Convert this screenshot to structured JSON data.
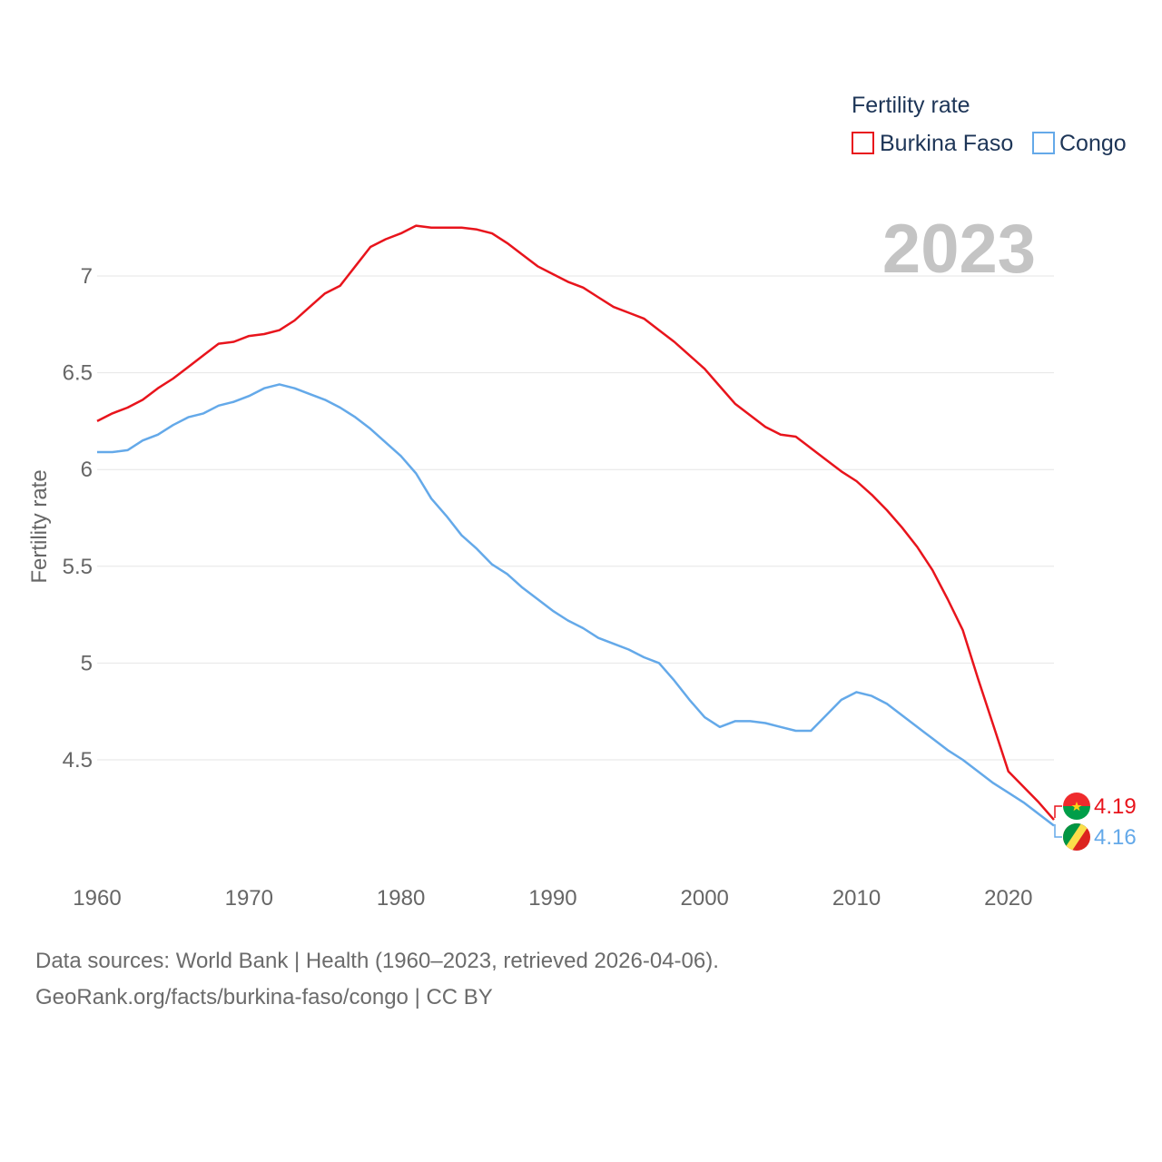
{
  "chart_data": {
    "type": "line",
    "title": "",
    "xlabel": "",
    "ylabel": "Fertility rate",
    "xlim": [
      1960,
      2023
    ],
    "ylim": [
      4.0,
      7.25
    ],
    "x_ticks": [
      1960,
      1970,
      1980,
      1990,
      2000,
      2010,
      2020
    ],
    "y_ticks": [
      4.5,
      5,
      5.5,
      6,
      6.5,
      7
    ],
    "y_tick_labels": [
      "4.5",
      "5",
      "5.5",
      "6",
      "6.5",
      "7"
    ],
    "x_tick_labels": [
      "1960",
      "1970",
      "1980",
      "1990",
      "2000",
      "2010",
      "2020"
    ],
    "year_label": "2023",
    "legend": {
      "title": "Fertility rate",
      "position": "top-right"
    },
    "x": [
      1960,
      1961,
      1962,
      1963,
      1964,
      1965,
      1966,
      1967,
      1968,
      1969,
      1970,
      1971,
      1972,
      1973,
      1974,
      1975,
      1976,
      1977,
      1978,
      1979,
      1980,
      1981,
      1982,
      1983,
      1984,
      1985,
      1986,
      1987,
      1988,
      1989,
      1990,
      1991,
      1992,
      1993,
      1994,
      1995,
      1996,
      1997,
      1998,
      1999,
      2000,
      2001,
      2002,
      2003,
      2004,
      2005,
      2006,
      2007,
      2008,
      2009,
      2010,
      2011,
      2012,
      2013,
      2014,
      2015,
      2016,
      2017,
      2018,
      2019,
      2020,
      2021,
      2022,
      2023
    ],
    "series": [
      {
        "name": "Burkina Faso",
        "color": "#e8141c",
        "end_label": "4.19",
        "flag": "burkina-faso-flag-icon",
        "values": [
          6.25,
          6.29,
          6.32,
          6.36,
          6.42,
          6.47,
          6.53,
          6.59,
          6.65,
          6.66,
          6.69,
          6.7,
          6.72,
          6.77,
          6.84,
          6.91,
          6.95,
          7.05,
          7.15,
          7.19,
          7.22,
          7.26,
          7.25,
          7.25,
          7.25,
          7.24,
          7.22,
          7.17,
          7.11,
          7.05,
          7.01,
          6.97,
          6.94,
          6.89,
          6.84,
          6.81,
          6.78,
          6.72,
          6.66,
          6.59,
          6.52,
          6.43,
          6.34,
          6.28,
          6.22,
          6.18,
          6.17,
          6.11,
          6.05,
          5.99,
          5.94,
          5.87,
          5.79,
          5.7,
          5.6,
          5.48,
          5.33,
          5.17,
          4.92,
          4.68,
          4.44,
          4.36,
          4.28,
          4.19
        ]
      },
      {
        "name": "Congo",
        "color": "#64a9e9",
        "end_label": "4.16",
        "flag": "congo-flag-icon",
        "values": [
          6.09,
          6.09,
          6.1,
          6.15,
          6.18,
          6.23,
          6.27,
          6.29,
          6.33,
          6.35,
          6.38,
          6.42,
          6.44,
          6.42,
          6.39,
          6.36,
          6.32,
          6.27,
          6.21,
          6.14,
          6.07,
          5.98,
          5.85,
          5.76,
          5.66,
          5.59,
          5.51,
          5.46,
          5.39,
          5.33,
          5.27,
          5.22,
          5.18,
          5.13,
          5.1,
          5.07,
          5.03,
          5.0,
          4.91,
          4.81,
          4.72,
          4.67,
          4.7,
          4.7,
          4.69,
          4.67,
          4.65,
          4.65,
          4.73,
          4.81,
          4.85,
          4.83,
          4.79,
          4.73,
          4.67,
          4.61,
          4.55,
          4.5,
          4.44,
          4.38,
          4.33,
          4.28,
          4.22,
          4.16
        ]
      }
    ]
  },
  "footer": {
    "sources": "Data sources: World Bank | Health (1960–2023, retrieved 2026-04-06).",
    "credit": "GeoRank.org/facts/burkina-faso/congo | CC BY"
  }
}
